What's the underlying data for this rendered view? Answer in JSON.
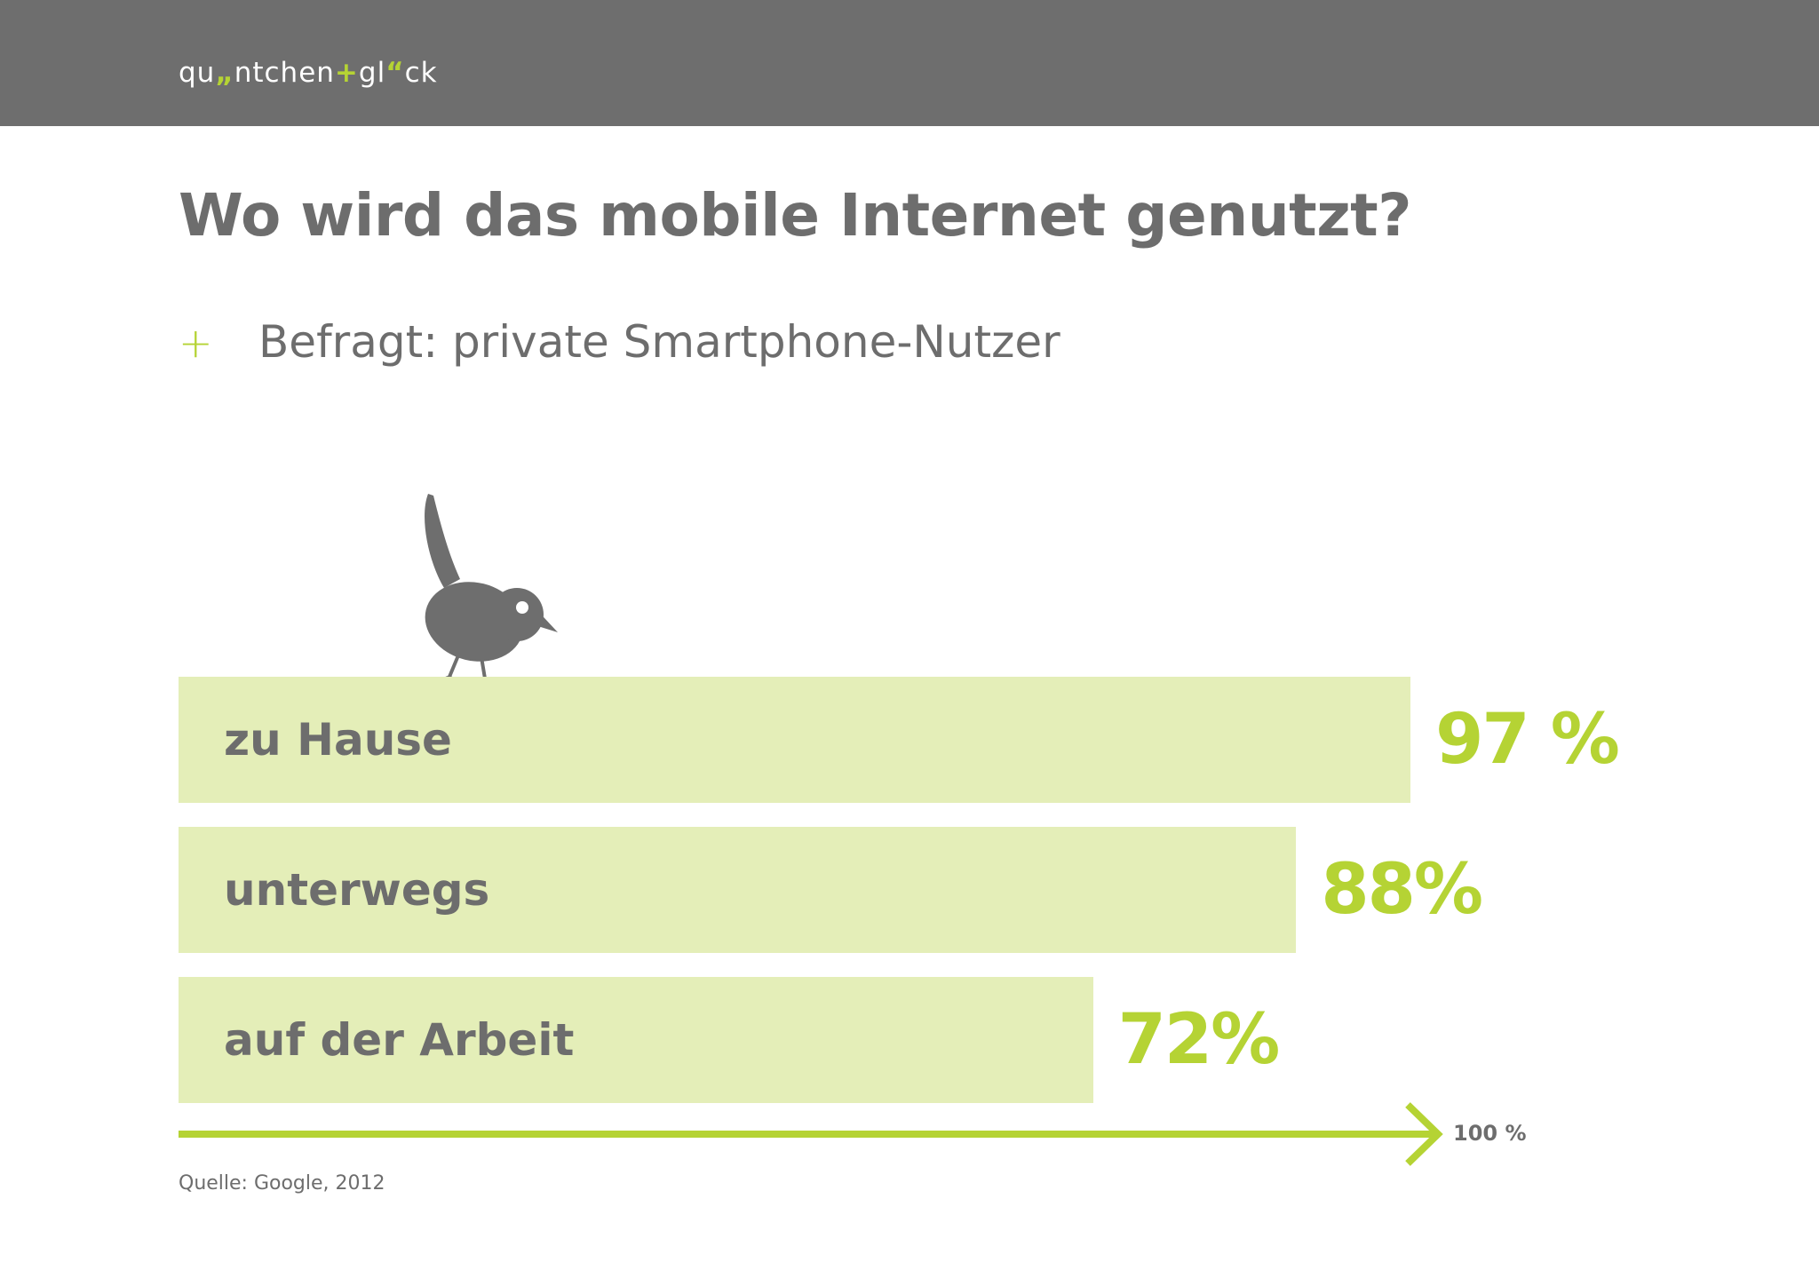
{
  "header": {
    "logo_parts": [
      "qu",
      "„",
      "ntchen",
      "+",
      "gl",
      "“",
      "ck"
    ]
  },
  "title": "Wo wird das mobile Internet genutzt?",
  "subtitle": {
    "bullet": "+",
    "text": "Befragt: private Smartphone-Nutzer"
  },
  "chart_data": {
    "type": "bar",
    "orientation": "horizontal",
    "categories": [
      "zu Hause",
      "unterwegs",
      "auf der Arbeit"
    ],
    "values": [
      97,
      88,
      72
    ],
    "value_labels": [
      "97 %",
      "88%",
      "72%"
    ],
    "xlim": [
      0,
      100
    ],
    "axis_end_label": "100 %",
    "grid": false,
    "colors": {
      "bar": "#e4eeb8",
      "value": "#b5d334",
      "axis": "#b5d334"
    }
  },
  "source": "Quelle: Google, 2012",
  "colors": {
    "header_bg": "#6e6e6e",
    "accent": "#b5d334",
    "text": "#6d6d6d"
  }
}
